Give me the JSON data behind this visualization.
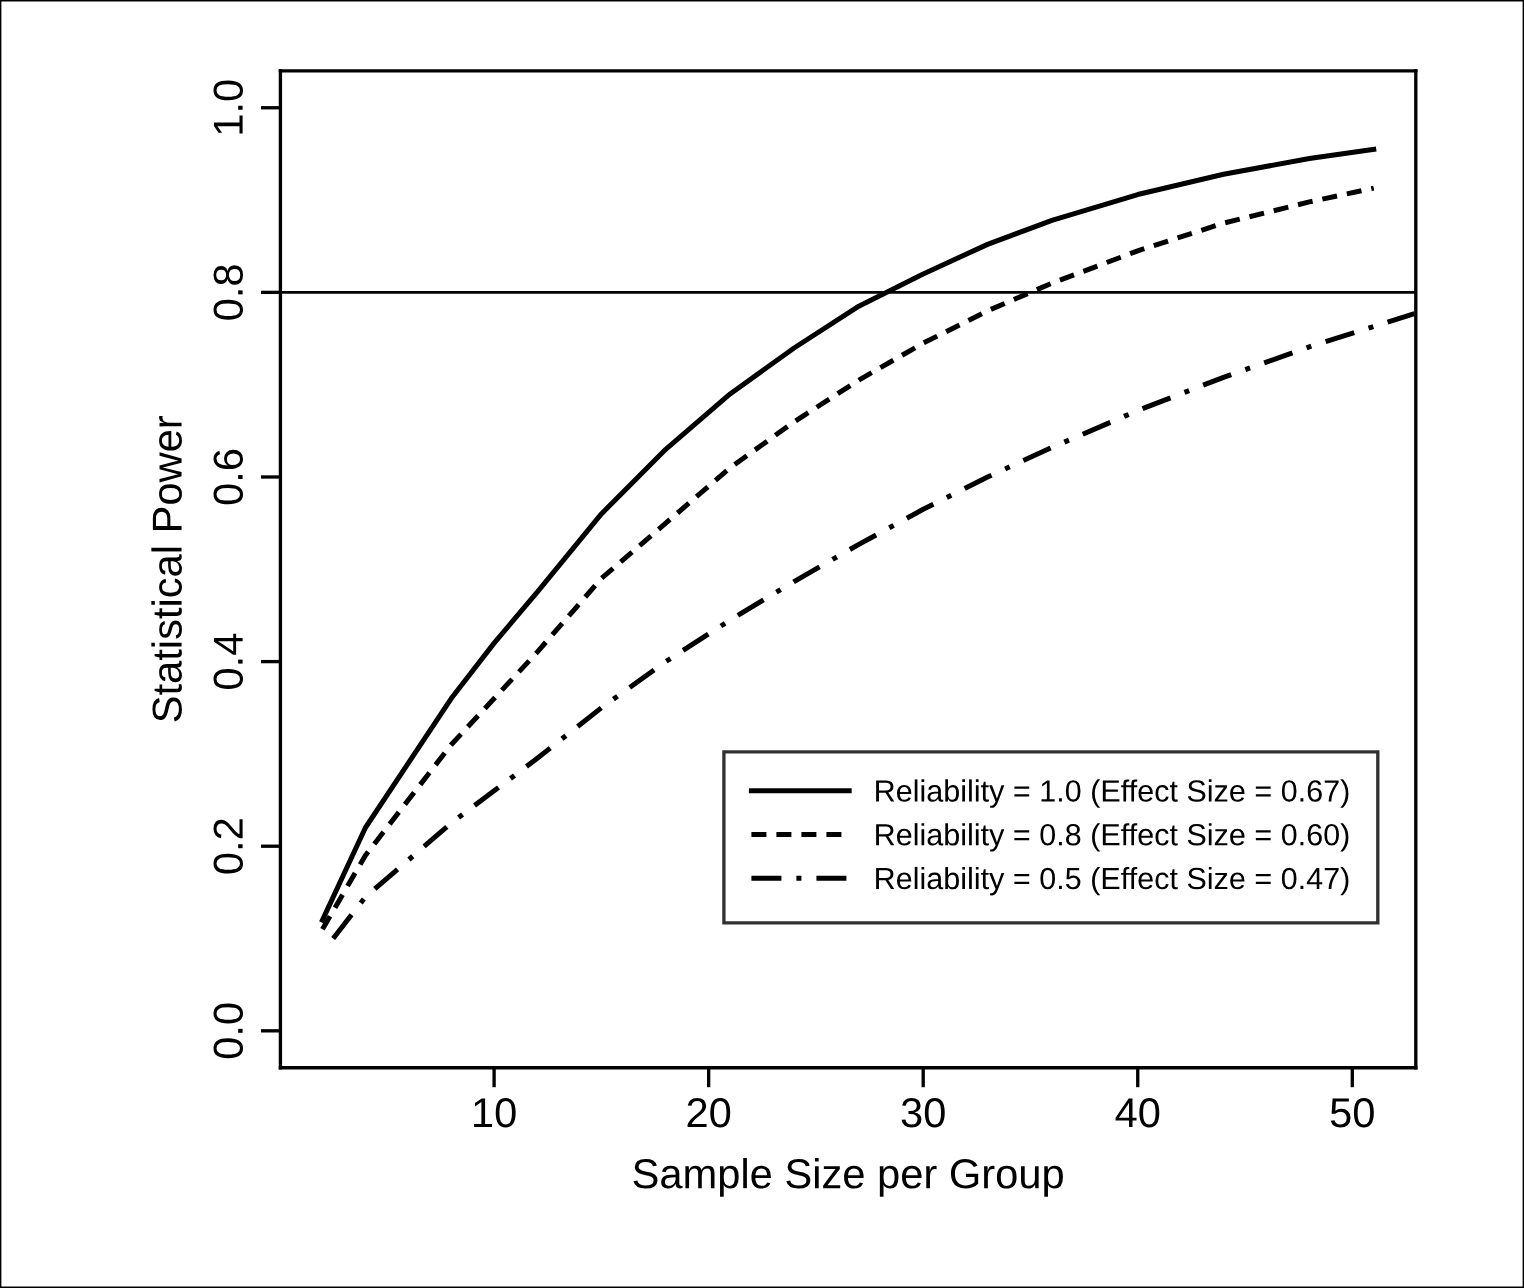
{
  "chart_data": {
    "type": "line",
    "xlabel": "Sample Size per Group",
    "ylabel": "Statistical Power",
    "xlim": [
      0.04,
      52.96
    ],
    "ylim": [
      -0.04,
      1.04
    ],
    "xticks": [
      10,
      20,
      30,
      40,
      50
    ],
    "yticks": [
      {
        "value": 0,
        "label": "0.0"
      },
      0.2,
      0.4,
      0.6,
      0.8,
      {
        "value": 1,
        "label": "1.0"
      }
    ],
    "grid": false,
    "legend": "bottom right",
    "marker": "none",
    "ref_lines": [
      {
        "axis": "y",
        "value": 0.8,
        "color": "#000000",
        "line_style": "solid"
      }
    ],
    "series": [
      {
        "name": "Reliability = 1.0 (Effect Size = 0.67)",
        "color": "#000000",
        "line_style": "solid",
        "x": [
          2,
          4,
          6,
          8,
          10,
          12,
          15,
          18,
          21,
          24,
          27,
          30,
          33,
          36,
          40,
          44,
          48,
          51
        ],
        "values": [
          0.12,
          0.22,
          0.29,
          0.36,
          0.42,
          0.475,
          0.56,
          0.63,
          0.69,
          0.74,
          0.785,
          0.82,
          0.852,
          0.878,
          0.906,
          0.928,
          0.945,
          0.955
        ]
      },
      {
        "name": "Reliability = 0.8 (Effect Size = 0.60)",
        "color": "#000000",
        "line_style": "dashed",
        "x": [
          2,
          4,
          6,
          8,
          10,
          12,
          15,
          18,
          21,
          24,
          27,
          30,
          33,
          36,
          40,
          44,
          48,
          51
        ],
        "values": [
          0.11,
          0.19,
          0.25,
          0.31,
          0.36,
          0.41,
          0.49,
          0.55,
          0.61,
          0.66,
          0.705,
          0.745,
          0.78,
          0.81,
          0.845,
          0.875,
          0.898,
          0.913
        ]
      },
      {
        "name": "Reliability = 0.5 (Effect Size = 0.47)",
        "color": "#000000",
        "line_style": "dashdot",
        "x": [
          2.5,
          4,
          6,
          8,
          10,
          12,
          15,
          18,
          21,
          24,
          27,
          30,
          33,
          36,
          40,
          44,
          48,
          52.9
        ],
        "values": [
          0.1,
          0.145,
          0.185,
          0.225,
          0.26,
          0.295,
          0.35,
          0.4,
          0.445,
          0.487,
          0.527,
          0.565,
          0.6,
          0.632,
          0.672,
          0.708,
          0.741,
          0.777
        ]
      }
    ]
  }
}
